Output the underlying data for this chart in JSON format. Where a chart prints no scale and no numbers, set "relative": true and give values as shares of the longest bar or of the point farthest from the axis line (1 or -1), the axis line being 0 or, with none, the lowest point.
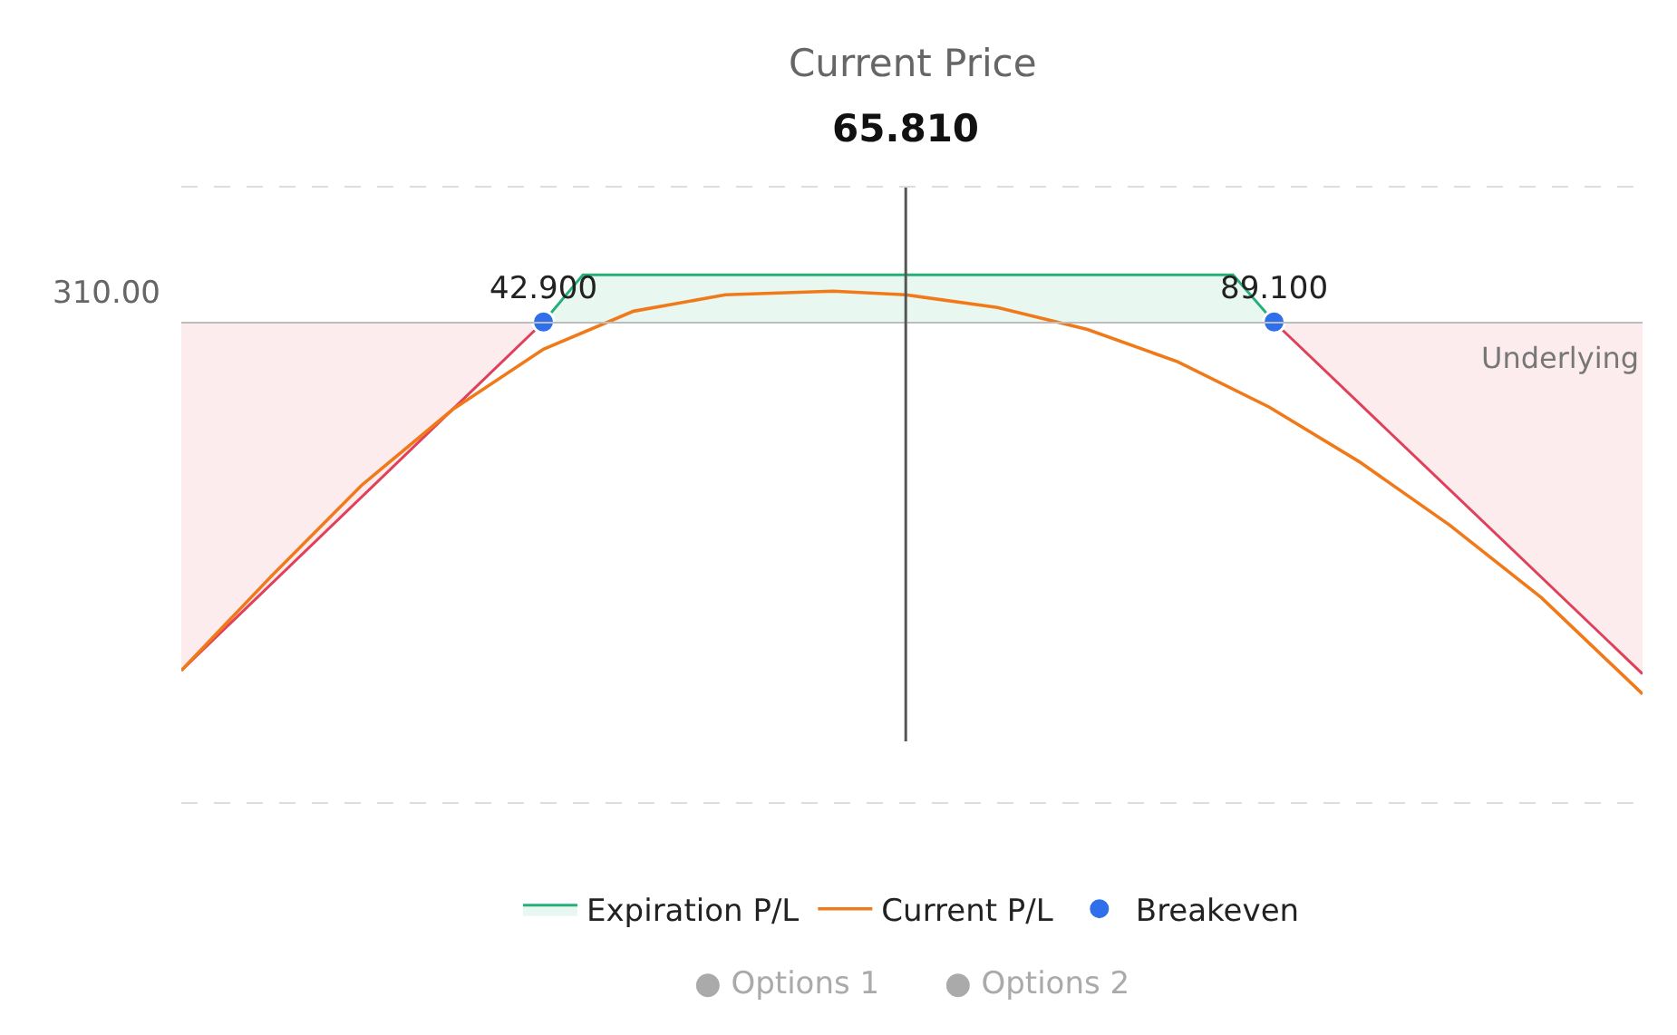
{
  "chart_data": {
    "type": "area",
    "relative": true,
    "xlim": [
      20,
      112.4
    ],
    "tick_labels": "x",
    "legend": "bottom",
    "xticks": [
      {
        "value": 42.9,
        "label": "42.900"
      },
      {
        "value": 89.1,
        "label": "89.100"
      }
    ],
    "series": [
      {
        "color": "#e0405a",
        "x": [
          20,
          42.9
        ],
        "values": [
          -0.937,
          0
        ]
      },
      {
        "color": "#e0405a",
        "x": [
          89.1,
          112.4
        ],
        "values": [
          0,
          -0.946
        ]
      },
      {
        "name": "Expiration P/L",
        "color": "#25b07a",
        "x": [
          42.9,
          45.4,
          86.5,
          89.1
        ],
        "values": [
          0,
          0.127,
          0.127,
          0
        ]
      },
      {
        "name": "Current P/L",
        "type": "line",
        "color": "#f07a1a",
        "x": [
          20,
          25.7,
          31.4,
          37.2,
          42.9,
          48.6,
          54.4,
          61.2,
          65.8,
          71.6,
          77.3,
          83.0,
          88.8,
          94.5,
          100.2,
          106.0,
          112.4
        ],
        "values": [
          -0.937,
          -0.683,
          -0.439,
          -0.234,
          -0.073,
          0.029,
          0.073,
          0.083,
          0.073,
          0.039,
          -0.02,
          -0.107,
          -0.229,
          -0.376,
          -0.546,
          -0.741,
          -1.0
        ]
      },
      {
        "name": "Breakeven",
        "type": "scatter",
        "marker": "circle",
        "color": "#2f6fec",
        "x": [
          42.9,
          89.1
        ],
        "values": [
          0,
          0
        ]
      }
    ],
    "title": "Current Price",
    "ref_lines": [
      {
        "axis": "x",
        "value": 65.81,
        "label": "65.810",
        "color": "#555555"
      }
    ],
    "annotations": [
      "310.00",
      "Underlying",
      "● Options 1",
      "● Options 2"
    ]
  }
}
